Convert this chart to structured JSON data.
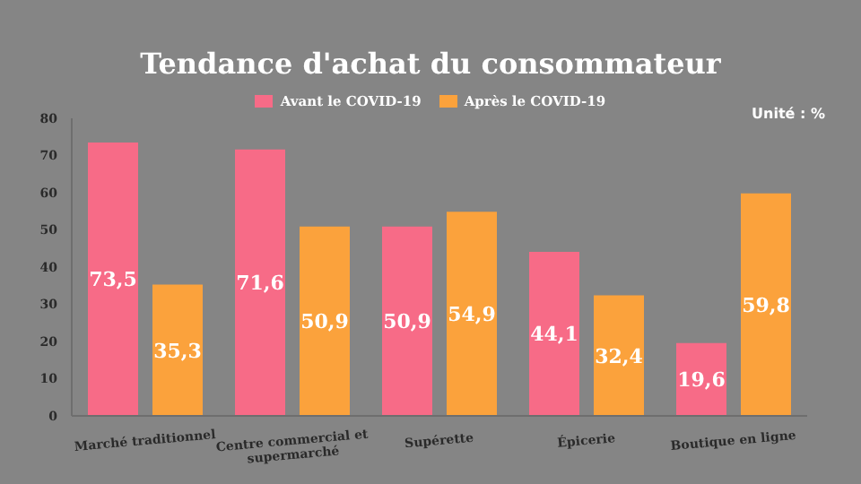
{
  "chart_data": {
    "type": "bar",
    "title": "Tendance d'achat du consommateur",
    "annotations": [
      "Unité : %"
    ],
    "categories": [
      "Marché traditionnel",
      "Centre commercial et supermarché",
      "Supérette",
      "Épicerie",
      "Boutique en ligne"
    ],
    "series": [
      {
        "name": "Avant le COVID-19",
        "color": "#f76b87",
        "values": [
          73.5,
          71.6,
          50.9,
          44.1,
          19.6
        ],
        "value_labels": [
          "73,5",
          "71,6",
          "50,9",
          "44,1",
          "19,6"
        ]
      },
      {
        "name": "Après le COVID-19",
        "color": "#fba23c",
        "values": [
          35.3,
          50.9,
          54.9,
          32.4,
          59.8
        ],
        "value_labels": [
          "35,3",
          "50,9",
          "54,9",
          "32,4",
          "59,8"
        ]
      }
    ],
    "ylim": [
      0,
      80
    ],
    "yticks": [
      0,
      10,
      20,
      30,
      40,
      50,
      60,
      70,
      80
    ],
    "grid": false,
    "legend": "top"
  }
}
